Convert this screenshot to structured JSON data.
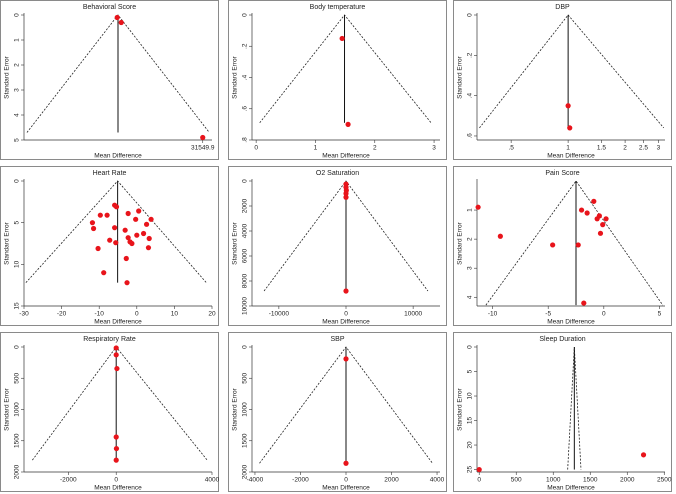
{
  "chart_data": [
    {
      "type": "funnel",
      "title": "Behavioral Score",
      "xlabel": "Mean Difference",
      "ylabel": "Standard Error",
      "color": "#e8141b",
      "yreverse": true,
      "xlim": [
        -35000,
        35000
      ],
      "ylim": [
        0,
        5
      ],
      "xticks": [
        31549.9
      ],
      "yticks": [
        0,
        1,
        2,
        3,
        4,
        5
      ],
      "x": [
        -300,
        1200,
        31549.9
      ],
      "values": [
        0.1,
        0.3,
        4.9
      ],
      "funnel": [
        [
          -33900,
          4.7
        ],
        [
          0,
          0
        ],
        [
          34000,
          4.7
        ]
      ]
    },
    {
      "type": "funnel",
      "title": "Body temperature",
      "xlabel": "Mean Difference",
      "ylabel": "Standard Error",
      "color": "#e8141b",
      "yreverse": true,
      "xlim": [
        -0.07,
        3.1
      ],
      "ylim": [
        0,
        0.8
      ],
      "xticks": [
        0,
        1,
        2,
        3
      ],
      "yticks": [
        0,
        {
          "value": 0.2,
          "label": ".2"
        },
        {
          "value": 0.4,
          "label": ".4"
        },
        {
          "value": 0.6,
          "label": ".6"
        },
        {
          "value": 0.8,
          "label": ".8"
        }
      ],
      "x": [
        1.45,
        1.55
      ],
      "values": [
        0.15,
        0.7
      ],
      "funnel": [
        [
          0.06,
          0.69
        ],
        [
          1.49,
          0
        ],
        [
          2.95,
          0.69
        ]
      ]
    },
    {
      "type": "funnel",
      "title": "DBP",
      "xlabel": "Mean Difference",
      "ylabel": "Standard Error",
      "color": "#e8141b",
      "yreverse": true,
      "xlog": true,
      "xlim": [
        0.33,
        3.25
      ],
      "ylim": [
        0,
        0.62
      ],
      "xticks": [
        {
          "value": 0.5,
          "label": ".5"
        },
        1,
        1.5,
        2,
        2.5,
        3
      ],
      "yticks": [
        0,
        {
          "value": 0.2,
          "label": ".2"
        },
        {
          "value": 0.4,
          "label": ".4"
        },
        {
          "value": 0.6,
          "label": ".6"
        }
      ],
      "x": [
        1.0,
        1.02
      ],
      "values": [
        0.45,
        0.56
      ],
      "funnel": [
        [
          0.34,
          0.56
        ],
        [
          1,
          0
        ],
        [
          3.2,
          0.56
        ]
      ]
    },
    {
      "type": "funnel",
      "title": "Heart Rate",
      "xlabel": "Mean Difference",
      "ylabel": "Standard Error",
      "color": "#e8141b",
      "yreverse": true,
      "xlim": [
        -30,
        20
      ],
      "ylim": [
        0,
        15
      ],
      "xticks": [
        -30,
        -20,
        -10,
        0,
        10,
        20
      ],
      "yticks": [
        0,
        5,
        10,
        15
      ],
      "x": [
        -5.9,
        -5.4,
        -2.3,
        0.5,
        -9.7,
        -7.9,
        -11.8,
        -0.3,
        2.6,
        3.8,
        -11.5,
        -5.9,
        -3.1,
        -2.3,
        -1.8,
        0.0,
        1.8,
        3.3,
        -7.2,
        -5.6,
        -1.3,
        -10.3,
        3.1,
        -2.8,
        -8.8,
        -2.6
      ],
      "values": [
        2.9,
        3.1,
        3.9,
        3.6,
        4.1,
        4.1,
        5.0,
        4.6,
        5.2,
        4.6,
        5.7,
        5.6,
        5.9,
        6.8,
        7.3,
        6.5,
        6.3,
        6.9,
        7.1,
        7.4,
        7.5,
        8.1,
        8.0,
        9.3,
        11.0,
        12.2
      ],
      "funnel": [
        [
          -29.5,
          12.2
        ],
        [
          -5.1,
          0
        ],
        [
          18.5,
          12.2
        ]
      ]
    },
    {
      "type": "funnel",
      "title": "O2 Saturation",
      "xlabel": "Mean Difference",
      "ylabel": "Standard Error",
      "color": "#e8141b",
      "yreverse": true,
      "xlim": [
        -14000,
        14000
      ],
      "ylim": [
        0,
        10000
      ],
      "xticks": [
        -10000,
        0,
        10000
      ],
      "yticks": [
        0,
        2000,
        4000,
        6000,
        8000,
        10000
      ],
      "x": [
        0,
        0,
        50,
        0,
        0,
        0
      ],
      "values": [
        250,
        500,
        750,
        1000,
        1300,
        8800
      ],
      "funnel": [
        [
          -12200,
          8800
        ],
        [
          0,
          0
        ],
        [
          12200,
          8800
        ]
      ]
    },
    {
      "type": "funnel",
      "title": "Pain Score",
      "xlabel": "Mean Difference",
      "ylabel": "Standard Error",
      "color": "#e8141b",
      "yreverse": true,
      "xlim": [
        -11.4,
        5.5
      ],
      "ylim": [
        0,
        4.3
      ],
      "xticks": [
        -10,
        -5,
        0,
        5
      ],
      "yticks": [
        1,
        2,
        3,
        4
      ],
      "x": [
        -11.3,
        -9.3,
        -4.6,
        -2.3,
        -2.0,
        -1.5,
        -0.9,
        -0.6,
        -0.4,
        -0.1,
        0.2,
        -0.3,
        -1.8
      ],
      "values": [
        0.9,
        1.9,
        2.2,
        2.2,
        1.0,
        1.1,
        0.7,
        1.3,
        1.2,
        1.5,
        1.3,
        1.8,
        4.2
      ],
      "funnel": [
        [
          -10.6,
          4.27
        ],
        [
          -2.5,
          0
        ],
        [
          5.3,
          4.27
        ]
      ]
    },
    {
      "type": "funnel",
      "title": "Respiratory Rate",
      "xlabel": "Mean Difference",
      "ylabel": "Standard Error",
      "color": "#e8141b",
      "yreverse": true,
      "xlim": [
        -3850,
        4000
      ],
      "ylim": [
        0,
        2000
      ],
      "xticks": [
        -2000,
        0,
        4000
      ],
      "yticks": [
        0,
        500,
        1000,
        1500,
        2000
      ],
      "x": [
        0,
        0,
        30,
        0,
        10,
        0
      ],
      "values": [
        15,
        125,
        345,
        1440,
        1625,
        1810
      ],
      "funnel": [
        [
          -3500,
          1810
        ],
        [
          0,
          0
        ],
        [
          3800,
          1810
        ]
      ]
    },
    {
      "type": "funnel",
      "title": "SBP",
      "xlabel": "Mean Difference",
      "ylabel": "Standard Error",
      "color": "#e8141b",
      "yreverse": true,
      "xlim": [
        -4130,
        4130
      ],
      "ylim": [
        0,
        2000
      ],
      "xticks": [
        -4000,
        -2000,
        0,
        2000,
        4000
      ],
      "yticks": [
        0,
        500,
        1000,
        1500,
        2000
      ],
      "x": [
        0,
        0
      ],
      "values": [
        190,
        1860
      ],
      "funnel": [
        [
          -3800,
          1860
        ],
        [
          0,
          0
        ],
        [
          3800,
          1860
        ]
      ]
    },
    {
      "type": "funnel",
      "title": "Sleep Duration",
      "xlabel": "Mean Difference",
      "ylabel": "Standard Error",
      "color": "#e8141b",
      "yreverse": true,
      "xlim": [
        -30,
        2510
      ],
      "ylim": [
        0,
        25.5
      ],
      "xticks": [
        0,
        500,
        1000,
        1500,
        2000,
        2500
      ],
      "yticks": [
        0,
        5,
        10,
        15,
        20,
        25
      ],
      "x": [
        0,
        2220
      ],
      "values": [
        25,
        22
      ],
      "funnel": [
        [
          1195,
          25
        ],
        [
          1285,
          0
        ],
        [
          1375,
          25
        ]
      ]
    }
  ]
}
